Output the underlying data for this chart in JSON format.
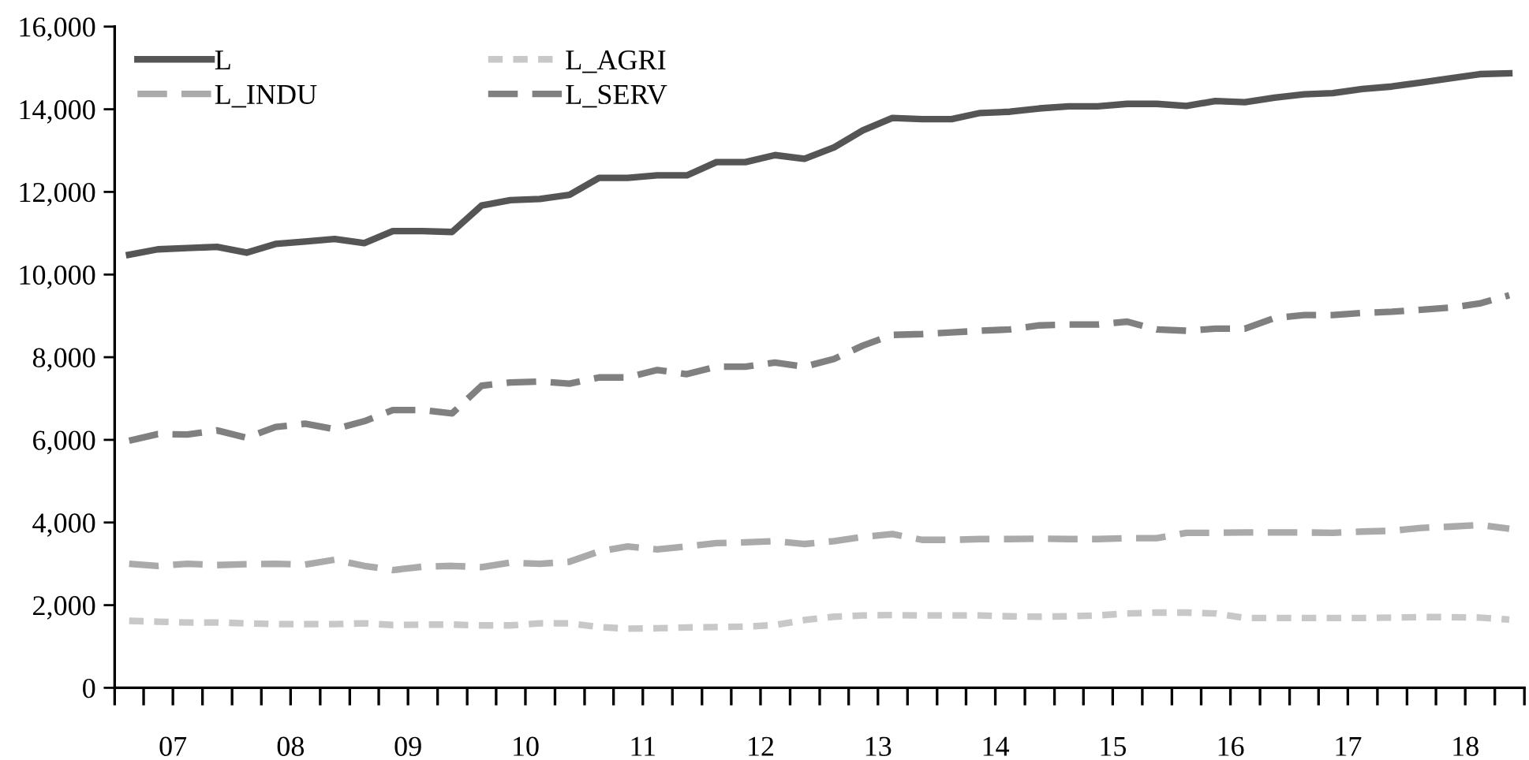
{
  "chart_data": {
    "type": "line",
    "x": [
      "2007-02-15",
      "2007-05-15",
      "2007-08-15",
      "2007-11-15",
      "2008-02-15",
      "2008-05-15",
      "2008-08-15",
      "2008-11-15",
      "2009-02-15",
      "2009-05-15",
      "2009-08-15",
      "2009-11-15",
      "2010-02-15",
      "2010-05-15",
      "2010-08-15",
      "2010-11-15",
      "2011-02-15",
      "2011-05-15",
      "2011-08-15",
      "2011-11-15",
      "2012-02-15",
      "2012-05-15",
      "2012-08-15",
      "2012-11-15",
      "2013-02-15",
      "2013-05-15",
      "2013-08-15",
      "2013-11-15",
      "2014-02-15",
      "2014-05-15",
      "2014-08-15",
      "2014-11-15",
      "2015-02-15",
      "2015-05-15",
      "2015-08-15",
      "2015-11-15",
      "2016-02-15",
      "2016-05-15",
      "2016-08-15",
      "2016-11-15",
      "2017-02-15",
      "2017-05-15",
      "2017-08-15",
      "2017-11-15",
      "2018-02-15",
      "2018-05-15",
      "2018-08-15",
      "2018-11-15"
    ],
    "series": [
      {
        "name": "L",
        "color": "#555555",
        "line_style": "solid",
        "values": [
          10480,
          10610,
          10640,
          10670,
          10530,
          10740,
          10800,
          10860,
          10760,
          11050,
          11050,
          11030,
          11670,
          11800,
          11830,
          11930,
          12340,
          12340,
          12400,
          12400,
          12720,
          12720,
          12890,
          12800,
          13080,
          13490,
          13790,
          13760,
          13760,
          13910,
          13940,
          14020,
          14070,
          14070,
          14130,
          14130,
          14080,
          14200,
          14170,
          14280,
          14360,
          14390,
          14490,
          14550,
          14650,
          14750,
          14850,
          14870
        ]
      },
      {
        "name": "L_AGRI",
        "color": "#c8c8c8",
        "line_style": "dotted",
        "values": [
          1620,
          1600,
          1580,
          1580,
          1560,
          1540,
          1540,
          1540,
          1560,
          1520,
          1530,
          1530,
          1510,
          1510,
          1560,
          1560,
          1470,
          1430,
          1440,
          1460,
          1470,
          1480,
          1520,
          1640,
          1720,
          1750,
          1760,
          1750,
          1750,
          1750,
          1730,
          1720,
          1730,
          1750,
          1800,
          1820,
          1820,
          1800,
          1690,
          1690,
          1690,
          1690,
          1690,
          1700,
          1710,
          1710,
          1700,
          1650
        ]
      },
      {
        "name": "L_INDU",
        "color": "#aaaaaa",
        "line_style": "dashed",
        "values": [
          3000,
          2950,
          3000,
          2970,
          2990,
          3000,
          2980,
          3100,
          2950,
          2850,
          2930,
          2950,
          2920,
          3030,
          3000,
          3050,
          3300,
          3420,
          3350,
          3420,
          3500,
          3520,
          3550,
          3480,
          3550,
          3650,
          3720,
          3580,
          3580,
          3600,
          3600,
          3610,
          3600,
          3600,
          3620,
          3620,
          3750,
          3750,
          3760,
          3760,
          3760,
          3750,
          3780,
          3800,
          3870,
          3900,
          3940,
          3850
        ]
      },
      {
        "name": "L_SERV",
        "color": "#808080",
        "line_style": "dashed",
        "values": [
          5980,
          6140,
          6130,
          6230,
          6050,
          6310,
          6390,
          6260,
          6450,
          6720,
          6720,
          6640,
          7310,
          7390,
          7410,
          7360,
          7510,
          7510,
          7690,
          7590,
          7770,
          7770,
          7870,
          7770,
          7960,
          8280,
          8540,
          8560,
          8600,
          8640,
          8670,
          8770,
          8790,
          8790,
          8860,
          8670,
          8640,
          8690,
          8690,
          8950,
          9020,
          9020,
          9070,
          9100,
          9150,
          9200,
          9300,
          9500
        ]
      }
    ],
    "ylim": [
      0,
      16000
    ],
    "yticks": [
      {
        "value": 0,
        "label": "0"
      },
      {
        "value": 2000,
        "label": "2,000"
      },
      {
        "value": 4000,
        "label": "4,000"
      },
      {
        "value": 6000,
        "label": "6,000"
      },
      {
        "value": 8000,
        "label": "8,000"
      },
      {
        "value": 10000,
        "label": "10,000"
      },
      {
        "value": 12000,
        "label": "12,000"
      },
      {
        "value": 14000,
        "label": "14,000"
      },
      {
        "value": 16000,
        "label": "16,000"
      }
    ],
    "xlim": [
      "2007-01-01",
      "2019-01-01"
    ],
    "xticks": [
      {
        "value": "2007-01-01",
        "label": null
      },
      {
        "value": "2007-04-01",
        "label": null
      },
      {
        "value": "2007-07-01",
        "label": "07"
      },
      {
        "value": "2007-10-01",
        "label": null
      },
      {
        "value": "2008-01-01",
        "label": null
      },
      {
        "value": "2008-04-01",
        "label": null
      },
      {
        "value": "2008-07-01",
        "label": "08"
      },
      {
        "value": "2008-10-01",
        "label": null
      },
      {
        "value": "2009-01-01",
        "label": null
      },
      {
        "value": "2009-04-01",
        "label": null
      },
      {
        "value": "2009-07-01",
        "label": "09"
      },
      {
        "value": "2009-10-01",
        "label": null
      },
      {
        "value": "2010-01-01",
        "label": null
      },
      {
        "value": "2010-04-01",
        "label": null
      },
      {
        "value": "2010-07-01",
        "label": "10"
      },
      {
        "value": "2010-10-01",
        "label": null
      },
      {
        "value": "2011-01-01",
        "label": null
      },
      {
        "value": "2011-04-01",
        "label": null
      },
      {
        "value": "2011-07-01",
        "label": "11"
      },
      {
        "value": "2011-10-01",
        "label": null
      },
      {
        "value": "2012-01-01",
        "label": null
      },
      {
        "value": "2012-04-01",
        "label": null
      },
      {
        "value": "2012-07-01",
        "label": "12"
      },
      {
        "value": "2012-10-01",
        "label": null
      },
      {
        "value": "2013-01-01",
        "label": null
      },
      {
        "value": "2013-04-01",
        "label": null
      },
      {
        "value": "2013-07-01",
        "label": "13"
      },
      {
        "value": "2013-10-01",
        "label": null
      },
      {
        "value": "2014-01-01",
        "label": null
      },
      {
        "value": "2014-04-01",
        "label": null
      },
      {
        "value": "2014-07-01",
        "label": "14"
      },
      {
        "value": "2014-10-01",
        "label": null
      },
      {
        "value": "2015-01-01",
        "label": null
      },
      {
        "value": "2015-04-01",
        "label": null
      },
      {
        "value": "2015-07-01",
        "label": "15"
      },
      {
        "value": "2015-10-01",
        "label": null
      },
      {
        "value": "2016-01-01",
        "label": null
      },
      {
        "value": "2016-04-01",
        "label": null
      },
      {
        "value": "2016-07-01",
        "label": "16"
      },
      {
        "value": "2016-10-01",
        "label": null
      },
      {
        "value": "2017-01-01",
        "label": null
      },
      {
        "value": "2017-04-01",
        "label": null
      },
      {
        "value": "2017-07-01",
        "label": "17"
      },
      {
        "value": "2017-10-01",
        "label": null
      },
      {
        "value": "2018-01-01",
        "label": null
      },
      {
        "value": "2018-04-01",
        "label": null
      },
      {
        "value": "2018-07-01",
        "label": "18"
      },
      {
        "value": "2018-10-01",
        "label": null
      },
      {
        "value": "2019-01-01",
        "label": null
      }
    ],
    "grid": false,
    "legend": "top left",
    "marker": "none"
  }
}
